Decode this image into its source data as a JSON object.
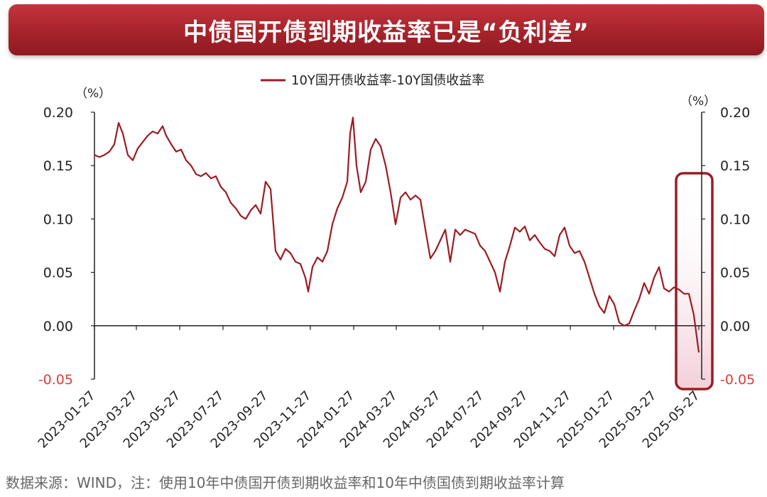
{
  "banner": {
    "title": "中债国开债到期收益率已是“负利差”"
  },
  "source_note": "数据来源：WIND，注：使用10年中债国开债到期收益率和10年中债国债到期收益率计算",
  "colors": {
    "series": "#9b1c24",
    "highlight": "#9b1c24",
    "negative_tick": "#e23a3a"
  },
  "chart_data": {
    "type": "line",
    "title": "",
    "legend_position": "top-center",
    "y_unit_left": "（%）",
    "y_unit_right": "（%）",
    "ylim": [
      -0.05,
      0.2
    ],
    "y_ticks": [
      0.2,
      0.15,
      0.1,
      0.05,
      0.0,
      -0.05
    ],
    "y_tick_labels": [
      "0.20",
      "0.15",
      "0.10",
      "0.05",
      "0.00",
      "-0.05"
    ],
    "x_tick_labels": [
      "2023-01-27",
      "2023-03-27",
      "2023-05-27",
      "2023-07-27",
      "2023-09-27",
      "2023-11-27",
      "2024-01-27",
      "2024-03-27",
      "2024-05-27",
      "2024-07-27",
      "2024-09-27",
      "2024-11-27",
      "2025-01-27",
      "2025-03-27",
      "2025-05-27"
    ],
    "xlim": [
      "2023-01-27",
      "2025-05-31"
    ],
    "highlight_range": [
      "2025-05-01",
      "2025-06-01"
    ],
    "series": [
      {
        "name": "10Y国开债收益率-10Y国债收益率",
        "points": [
          [
            "2023-01-27",
            0.16
          ],
          [
            "2023-02-03",
            0.158
          ],
          [
            "2023-02-10",
            0.16
          ],
          [
            "2023-02-17",
            0.163
          ],
          [
            "2023-02-24",
            0.17
          ],
          [
            "2023-03-02",
            0.19
          ],
          [
            "2023-03-08",
            0.18
          ],
          [
            "2023-03-15",
            0.16
          ],
          [
            "2023-03-22",
            0.155
          ],
          [
            "2023-03-29",
            0.166
          ],
          [
            "2023-04-05",
            0.172
          ],
          [
            "2023-04-12",
            0.178
          ],
          [
            "2023-04-19",
            0.182
          ],
          [
            "2023-04-26",
            0.18
          ],
          [
            "2023-05-03",
            0.187
          ],
          [
            "2023-05-08",
            0.178
          ],
          [
            "2023-05-15",
            0.17
          ],
          [
            "2023-05-22",
            0.163
          ],
          [
            "2023-05-29",
            0.165
          ],
          [
            "2023-06-05",
            0.155
          ],
          [
            "2023-06-12",
            0.15
          ],
          [
            "2023-06-19",
            0.142
          ],
          [
            "2023-06-26",
            0.14
          ],
          [
            "2023-07-03",
            0.143
          ],
          [
            "2023-07-10",
            0.138
          ],
          [
            "2023-07-17",
            0.14
          ],
          [
            "2023-07-24",
            0.13
          ],
          [
            "2023-07-31",
            0.125
          ],
          [
            "2023-08-07",
            0.115
          ],
          [
            "2023-08-14",
            0.11
          ],
          [
            "2023-08-21",
            0.103
          ],
          [
            "2023-08-28",
            0.1
          ],
          [
            "2023-09-04",
            0.108
          ],
          [
            "2023-09-11",
            0.113
          ],
          [
            "2023-09-18",
            0.105
          ],
          [
            "2023-09-25",
            0.135
          ],
          [
            "2023-10-02",
            0.128
          ],
          [
            "2023-10-09",
            0.07
          ],
          [
            "2023-10-16",
            0.062
          ],
          [
            "2023-10-23",
            0.072
          ],
          [
            "2023-10-30",
            0.068
          ],
          [
            "2023-11-06",
            0.06
          ],
          [
            "2023-11-13",
            0.058
          ],
          [
            "2023-11-20",
            0.045
          ],
          [
            "2023-11-24",
            0.032
          ],
          [
            "2023-11-30",
            0.055
          ],
          [
            "2023-12-07",
            0.064
          ],
          [
            "2023-12-14",
            0.06
          ],
          [
            "2023-12-21",
            0.07
          ],
          [
            "2023-12-28",
            0.095
          ],
          [
            "2024-01-04",
            0.11
          ],
          [
            "2024-01-11",
            0.12
          ],
          [
            "2024-01-18",
            0.135
          ],
          [
            "2024-01-22",
            0.18
          ],
          [
            "2024-01-26",
            0.195
          ],
          [
            "2024-01-31",
            0.15
          ],
          [
            "2024-02-06",
            0.125
          ],
          [
            "2024-02-13",
            0.135
          ],
          [
            "2024-02-20",
            0.165
          ],
          [
            "2024-02-27",
            0.175
          ],
          [
            "2024-03-05",
            0.168
          ],
          [
            "2024-03-12",
            0.15
          ],
          [
            "2024-03-19",
            0.125
          ],
          [
            "2024-03-26",
            0.095
          ],
          [
            "2024-04-02",
            0.12
          ],
          [
            "2024-04-09",
            0.125
          ],
          [
            "2024-04-16",
            0.118
          ],
          [
            "2024-04-23",
            0.122
          ],
          [
            "2024-04-30",
            0.118
          ],
          [
            "2024-05-07",
            0.09
          ],
          [
            "2024-05-14",
            0.063
          ],
          [
            "2024-05-21",
            0.07
          ],
          [
            "2024-05-28",
            0.08
          ],
          [
            "2024-06-04",
            0.09
          ],
          [
            "2024-06-11",
            0.06
          ],
          [
            "2024-06-18",
            0.09
          ],
          [
            "2024-06-25",
            0.085
          ],
          [
            "2024-07-02",
            0.09
          ],
          [
            "2024-07-09",
            0.088
          ],
          [
            "2024-07-16",
            0.086
          ],
          [
            "2024-07-23",
            0.075
          ],
          [
            "2024-07-30",
            0.07
          ],
          [
            "2024-08-06",
            0.06
          ],
          [
            "2024-08-13",
            0.05
          ],
          [
            "2024-08-20",
            0.032
          ],
          [
            "2024-08-27",
            0.06
          ],
          [
            "2024-09-03",
            0.075
          ],
          [
            "2024-09-10",
            0.092
          ],
          [
            "2024-09-17",
            0.088
          ],
          [
            "2024-09-24",
            0.093
          ],
          [
            "2024-10-01",
            0.08
          ],
          [
            "2024-10-08",
            0.085
          ],
          [
            "2024-10-15",
            0.078
          ],
          [
            "2024-10-22",
            0.072
          ],
          [
            "2024-10-29",
            0.07
          ],
          [
            "2024-11-05",
            0.065
          ],
          [
            "2024-11-12",
            0.085
          ],
          [
            "2024-11-19",
            0.092
          ],
          [
            "2024-11-26",
            0.075
          ],
          [
            "2024-12-03",
            0.068
          ],
          [
            "2024-12-10",
            0.07
          ],
          [
            "2024-12-17",
            0.06
          ],
          [
            "2024-12-24",
            0.045
          ],
          [
            "2024-12-31",
            0.03
          ],
          [
            "2025-01-07",
            0.018
          ],
          [
            "2025-01-14",
            0.012
          ],
          [
            "2025-01-21",
            0.028
          ],
          [
            "2025-01-28",
            0.02
          ],
          [
            "2025-02-04",
            0.003
          ],
          [
            "2025-02-11",
            0.0
          ],
          [
            "2025-02-18",
            0.002
          ],
          [
            "2025-02-25",
            0.014
          ],
          [
            "2025-03-04",
            0.025
          ],
          [
            "2025-03-11",
            0.04
          ],
          [
            "2025-03-18",
            0.03
          ],
          [
            "2025-03-25",
            0.045
          ],
          [
            "2025-04-01",
            0.055
          ],
          [
            "2025-04-08",
            0.035
          ],
          [
            "2025-04-15",
            0.032
          ],
          [
            "2025-04-22",
            0.036
          ],
          [
            "2025-04-29",
            0.034
          ],
          [
            "2025-05-06",
            0.03
          ],
          [
            "2025-05-13",
            0.03
          ],
          [
            "2025-05-20",
            0.01
          ],
          [
            "2025-05-27",
            -0.025
          ]
        ]
      }
    ]
  }
}
